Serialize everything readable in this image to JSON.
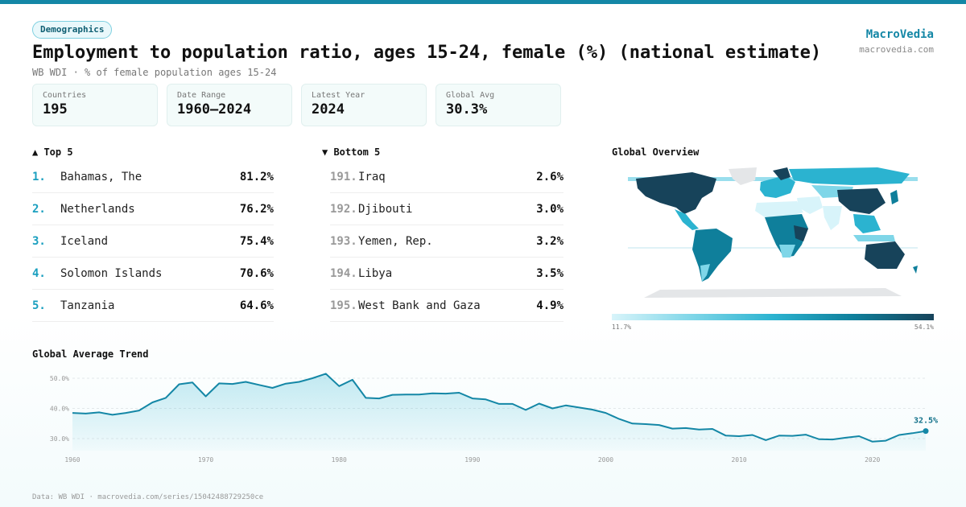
{
  "header": {
    "category": "Demographics",
    "title": "Employment to population ratio, ages 15-24, female (%) (national estimate)",
    "subtitle": "WB WDI · % of female population ages 15-24",
    "brand": "MacroVedia",
    "brand_url": "macrovedia.com"
  },
  "stats": [
    {
      "label": "Countries",
      "value": "195"
    },
    {
      "label": "Date Range",
      "value": "1960–2024"
    },
    {
      "label": "Latest Year",
      "value": "2024"
    },
    {
      "label": "Global Avg",
      "value": "30.3%"
    }
  ],
  "top5": {
    "heading": "▲ Top 5",
    "items": [
      {
        "rank": "1.",
        "name": "Bahamas, The",
        "value": "81.2%"
      },
      {
        "rank": "2.",
        "name": "Netherlands",
        "value": "76.2%"
      },
      {
        "rank": "3.",
        "name": "Iceland",
        "value": "75.4%"
      },
      {
        "rank": "4.",
        "name": "Solomon Islands",
        "value": "70.6%"
      },
      {
        "rank": "5.",
        "name": "Tanzania",
        "value": "64.6%"
      }
    ]
  },
  "bottom5": {
    "heading": "▼ Bottom 5",
    "items": [
      {
        "rank": "191.",
        "name": "Iraq",
        "value": "2.6%"
      },
      {
        "rank": "192.",
        "name": "Djibouti",
        "value": "3.0%"
      },
      {
        "rank": "193.",
        "name": "Yemen, Rep.",
        "value": "3.2%"
      },
      {
        "rank": "194.",
        "name": "Libya",
        "value": "3.5%"
      },
      {
        "rank": "195.",
        "name": "West Bank and Gaza",
        "value": "4.9%"
      }
    ]
  },
  "map": {
    "heading": "Global Overview",
    "scale_min": "11.7%",
    "scale_max": "54.1%",
    "colors": [
      "#d8f4fa",
      "#7fd6e8",
      "#2bb3d0",
      "#0f7f9b",
      "#17435a"
    ],
    "no_data_color": "#e4e6e8"
  },
  "footer": "Data: WB WDI · macrovedia.com/series/15042488729250ce",
  "chart_data": {
    "type": "area",
    "title": "Global Average Trend",
    "xlabel": "",
    "ylabel": "",
    "x": [
      1960,
      1961,
      1962,
      1963,
      1964,
      1965,
      1966,
      1967,
      1968,
      1969,
      1970,
      1971,
      1972,
      1973,
      1974,
      1975,
      1976,
      1977,
      1978,
      1979,
      1980,
      1981,
      1982,
      1983,
      1984,
      1985,
      1986,
      1987,
      1988,
      1989,
      1990,
      1991,
      1992,
      1993,
      1994,
      1995,
      1996,
      1997,
      1998,
      1999,
      2000,
      2001,
      2002,
      2003,
      2004,
      2005,
      2006,
      2007,
      2008,
      2009,
      2010,
      2011,
      2012,
      2013,
      2014,
      2015,
      2016,
      2017,
      2018,
      2019,
      2020,
      2021,
      2022,
      2023,
      2024
    ],
    "y": [
      38.5,
      38.3,
      38.7,
      37.9,
      38.5,
      39.3,
      42.0,
      43.5,
      48.0,
      48.6,
      44.0,
      48.3,
      48.1,
      48.8,
      47.8,
      46.8,
      48.2,
      48.8,
      50.0,
      51.5,
      47.4,
      49.5,
      43.5,
      43.3,
      44.5,
      44.6,
      44.6,
      45.0,
      44.9,
      45.2,
      43.3,
      43.0,
      41.5,
      41.5,
      39.5,
      41.6,
      40.0,
      41.0,
      40.3,
      39.6,
      38.5,
      36.5,
      35.0,
      34.8,
      34.5,
      33.3,
      33.5,
      33.0,
      33.2,
      31.0,
      30.8,
      31.2,
      29.5,
      31.0,
      30.9,
      31.3,
      29.8,
      29.7,
      30.3,
      30.8,
      29.0,
      29.3,
      31.2,
      31.8,
      32.5
    ],
    "yticks": [
      30,
      40,
      50
    ],
    "ytick_labels": [
      "30.0%",
      "40.0%",
      "50.0%"
    ],
    "xticks": [
      1960,
      1970,
      1980,
      1990,
      2000,
      2010,
      2020
    ],
    "ylim": [
      26,
      54
    ],
    "last_label": "32.5%",
    "line_color": "#1487a6",
    "grid": true
  }
}
